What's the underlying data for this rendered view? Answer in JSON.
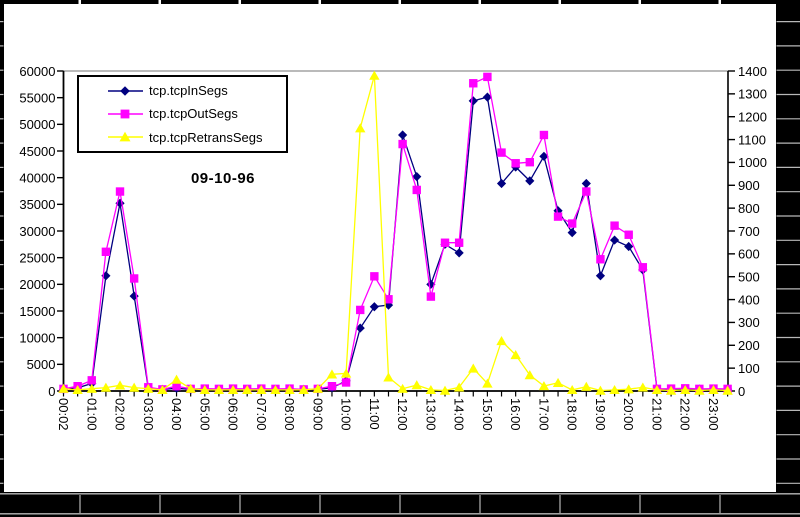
{
  "window": {
    "background_color": "#000000",
    "cell_gridline_color": "#b8b8b8",
    "chart_background": "#ffffff"
  },
  "chart": {
    "title": "09-10-96",
    "legend": [
      {
        "label": "tcp.tcpInSegs",
        "marker": "diamond",
        "color": "#000080"
      },
      {
        "label": "tcp.tcpOutSegs",
        "marker": "square",
        "color": "#FF00FF"
      },
      {
        "label": "tcp.tcpRetransSegs",
        "marker": "triangle",
        "color": "#FFFF00"
      }
    ]
  },
  "chart_data": {
    "type": "line",
    "title": "09-10-96",
    "grid": "top-gridline-only",
    "legend_position": "top-left-inside",
    "left_axis": {
      "min": 0,
      "max": 60000,
      "step": 5000,
      "tick_labels": [
        "0",
        "5000",
        "10000",
        "15000",
        "20000",
        "25000",
        "30000",
        "35000",
        "40000",
        "45000",
        "50000",
        "55000",
        "60000"
      ]
    },
    "right_axis": {
      "min": 0,
      "max": 1400,
      "step": 100,
      "tick_labels": [
        "0",
        "100",
        "200",
        "300",
        "400",
        "500",
        "600",
        "700",
        "800",
        "900",
        "1000",
        "1100",
        "1200",
        "1300",
        "1400"
      ]
    },
    "x_tick_labels": [
      "00:02",
      "01:00",
      "02:00",
      "03:00",
      "04:00",
      "05:00",
      "06:00",
      "07:00",
      "08:00",
      "09:00",
      "10:00",
      "11:00",
      "12:00",
      "13:00",
      "14:00",
      "15:00",
      "16:00",
      "17:00",
      "18:00",
      "19:00",
      "20:00",
      "21:00",
      "22:00",
      "23:00"
    ],
    "categories": [
      "00:02",
      "00:30",
      "01:00",
      "01:30",
      "02:00",
      "02:30",
      "03:00",
      "03:30",
      "04:00",
      "04:30",
      "05:00",
      "05:30",
      "06:00",
      "06:30",
      "07:00",
      "07:30",
      "08:00",
      "08:30",
      "09:00",
      "09:30",
      "10:00",
      "10:30",
      "11:00",
      "11:30",
      "12:00",
      "12:30",
      "13:00",
      "13:30",
      "14:00",
      "14:30",
      "15:00",
      "15:30",
      "16:00",
      "16:30",
      "17:00",
      "17:30",
      "18:00",
      "18:30",
      "19:00",
      "19:30",
      "20:00",
      "20:30",
      "21:00",
      "21:30",
      "22:00",
      "22:30",
      "23:00",
      "23:30"
    ],
    "series": [
      {
        "name": "tcp.tcpInSegs",
        "axis": "left",
        "color": "#000080",
        "marker": "diamond",
        "values": [
          300,
          600,
          1400,
          21600,
          35200,
          17800,
          500,
          300,
          500,
          300,
          300,
          300,
          300,
          300,
          300,
          300,
          300,
          300,
          300,
          600,
          1900,
          11800,
          15800,
          16100,
          48000,
          40200,
          20000,
          27500,
          25900,
          54400,
          55100,
          38900,
          42000,
          39400,
          44000,
          33800,
          29700,
          38900,
          21600,
          28300,
          27100,
          22700,
          300,
          350,
          350,
          350,
          350,
          350
        ]
      },
      {
        "name": "tcp.tcpOutSegs",
        "axis": "left",
        "color": "#FF00FF",
        "marker": "square",
        "values": [
          400,
          900,
          2000,
          26100,
          37400,
          21100,
          700,
          300,
          900,
          400,
          450,
          400,
          450,
          400,
          450,
          400,
          450,
          300,
          400,
          900,
          1600,
          15200,
          21500,
          17200,
          46300,
          37700,
          17700,
          27800,
          27800,
          57700,
          58900,
          44700,
          42700,
          42900,
          48000,
          32700,
          31400,
          37400,
          24700,
          31000,
          29300,
          23200,
          400,
          450,
          500,
          400,
          450,
          400
        ]
      },
      {
        "name": "tcp.tcpRetransSegs",
        "axis": "right",
        "color": "#FFFF00",
        "marker": "triangle",
        "values": [
          10,
          5,
          10,
          15,
          25,
          15,
          10,
          5,
          50,
          10,
          5,
          5,
          5,
          5,
          5,
          5,
          5,
          5,
          10,
          73,
          77,
          1150,
          1380,
          60,
          10,
          26,
          5,
          2,
          16,
          99,
          33,
          219,
          158,
          70,
          22,
          36,
          5,
          19,
          2,
          5,
          8,
          16,
          5,
          2,
          5,
          2,
          5,
          2
        ]
      }
    ]
  }
}
